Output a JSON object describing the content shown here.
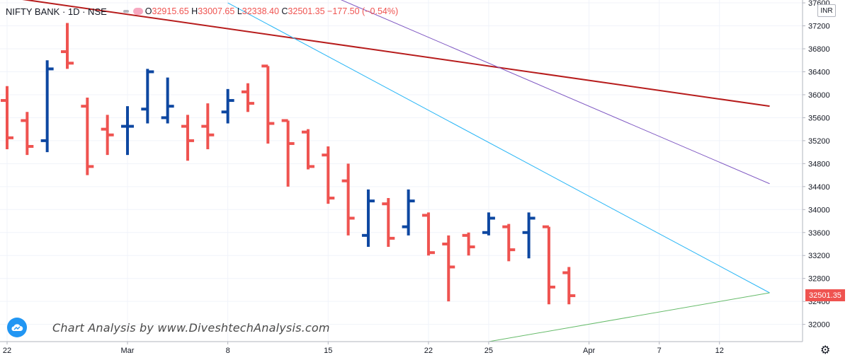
{
  "header": {
    "symbol": "NIFTY BANK · 1D · NSE",
    "open_label": "O",
    "open": "32915.65",
    "high_label": "H",
    "high": "33007.65",
    "low_label": "L",
    "low": "32338.40",
    "close_label": "C",
    "close": "32501.35",
    "change": "−177.50 (−0.54%)"
  },
  "currency_label": "INR",
  "last_price_label": "32501.35",
  "watermark": "Chart Analysis by www.DiveshtechAnalysis.com",
  "settings_icon": "gear-icon",
  "colors": {
    "up": "#0d47a1",
    "down": "#ef5350",
    "dark_red_line": "#b71c1c",
    "purple_line": "#7e57c2",
    "light_blue_line": "#29b6f6",
    "green_line": "#66bb6a"
  },
  "chart_data": {
    "type": "ohlc",
    "ylim": [
      31700,
      37650
    ],
    "y_ticks": [
      32000,
      32400,
      32800,
      33200,
      33600,
      34000,
      34400,
      34800,
      35200,
      35600,
      36000,
      36400,
      36800,
      37200,
      37600
    ],
    "x_ticks": [
      {
        "label": "22",
        "bar": 0
      },
      {
        "label": "Mar",
        "bar": 6
      },
      {
        "label": "8",
        "bar": 11
      },
      {
        "label": "15",
        "bar": 16
      },
      {
        "label": "22",
        "bar": 21
      },
      {
        "label": "25",
        "bar": 24
      },
      {
        "label": "Apr",
        "bar": 29
      },
      {
        "label": "7",
        "bar": 32.5
      },
      {
        "label": "12",
        "bar": 35.5
      }
    ],
    "bars": [
      {
        "o": 35900,
        "h": 36150,
        "l": 35050,
        "c": 35250
      },
      {
        "o": 35550,
        "h": 35700,
        "l": 34950,
        "c": 35100
      },
      {
        "o": 35200,
        "h": 36600,
        "l": 35000,
        "c": 36450
      },
      {
        "o": 36750,
        "h": 37250,
        "l": 36450,
        "c": 36550
      },
      {
        "o": 35800,
        "h": 35950,
        "l": 34600,
        "c": 34750
      },
      {
        "o": 35400,
        "h": 35650,
        "l": 34950,
        "c": 35300
      },
      {
        "o": 35450,
        "h": 35800,
        "l": 34950,
        "c": 35450
      },
      {
        "o": 35750,
        "h": 36450,
        "l": 35500,
        "c": 36400
      },
      {
        "o": 35600,
        "h": 36300,
        "l": 35500,
        "c": 35800
      },
      {
        "o": 35450,
        "h": 35650,
        "l": 34850,
        "c": 35200
      },
      {
        "o": 35450,
        "h": 35850,
        "l": 35050,
        "c": 35300
      },
      {
        "o": 35700,
        "h": 36100,
        "l": 35500,
        "c": 35900
      },
      {
        "o": 36050,
        "h": 36200,
        "l": 35700,
        "c": 35850
      },
      {
        "o": 36500,
        "h": 36500,
        "l": 35150,
        "c": 35500
      },
      {
        "o": 35550,
        "h": 35550,
        "l": 34400,
        "c": 35150
      },
      {
        "o": 35350,
        "h": 35400,
        "l": 34700,
        "c": 34750
      },
      {
        "o": 34950,
        "h": 35100,
        "l": 34100,
        "c": 34200
      },
      {
        "o": 34500,
        "h": 34800,
        "l": 33550,
        "c": 33850
      },
      {
        "o": 33550,
        "h": 34350,
        "l": 33350,
        "c": 34150
      },
      {
        "o": 34100,
        "h": 34200,
        "l": 33350,
        "c": 33500
      },
      {
        "o": 33700,
        "h": 34350,
        "l": 33550,
        "c": 34150
      },
      {
        "o": 33900,
        "h": 33950,
        "l": 33200,
        "c": 33250
      },
      {
        "o": 33400,
        "h": 33550,
        "l": 32400,
        "c": 33000
      },
      {
        "o": 33550,
        "h": 33600,
        "l": 33200,
        "c": 33350
      },
      {
        "o": 33600,
        "h": 33950,
        "l": 33550,
        "c": 33850
      },
      {
        "o": 33700,
        "h": 33750,
        "l": 33100,
        "c": 33300
      },
      {
        "o": 33600,
        "h": 33950,
        "l": 33150,
        "c": 33850
      },
      {
        "o": 33700,
        "h": 33700,
        "l": 32350,
        "c": 32650
      },
      {
        "o": 32900,
        "h": 33000,
        "l": 32350,
        "c": 32500
      }
    ],
    "trendlines": [
      {
        "name": "",
        "color": "#b71c1c",
        "from": {
          "bar": 0,
          "y": 37700
        },
        "to": {
          "bar": 38,
          "y": 35800
        }
      },
      {
        "name": "",
        "color": "#7e57c2",
        "from": {
          "bar": 13,
          "y": 38200
        },
        "to": {
          "bar": 38,
          "y": 34450
        }
      },
      {
        "name": "",
        "color": "#29b6f6",
        "from": {
          "bar": 11,
          "y": 37600
        },
        "to": {
          "bar": 38,
          "y": 32550
        }
      },
      {
        "name": "",
        "color": "#66bb6a",
        "from": {
          "bar": 24,
          "y": 31700
        },
        "to": {
          "bar": 38,
          "y": 32550
        }
      }
    ],
    "last_price": 32501.35
  }
}
